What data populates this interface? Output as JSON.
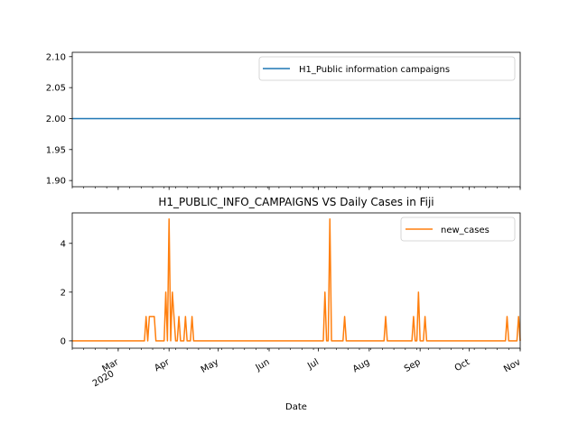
{
  "chart_data": [
    {
      "type": "line",
      "title": "",
      "xlabel": "",
      "ylabel": "",
      "ylim": [
        1.89,
        2.107
      ],
      "yticks": [
        "1.90",
        "1.95",
        "2.00",
        "2.05",
        "2.10"
      ],
      "ytick_values": [
        1.9,
        1.95,
        2.0,
        2.05,
        2.1
      ],
      "grid": false,
      "legend": "top-right",
      "series": [
        {
          "name": "H1_Public information campaigns",
          "color": "#1f77b4",
          "x": [
            "2020-02-02",
            "2020-11-01"
          ],
          "values": [
            2,
            2
          ]
        }
      ]
    },
    {
      "type": "line",
      "title": "H1_PUBLIC_INFO_CAMPAIGNS VS Daily Cases in Fiji",
      "xlabel": "Date",
      "ylabel": "",
      "ylim": [
        -0.3,
        5.25
      ],
      "yticks": [
        "0",
        "2",
        "4"
      ],
      "ytick_values": [
        0,
        2,
        4
      ],
      "grid": false,
      "legend": "top-right",
      "xlim": [
        "2020-02-02",
        "2020-11-01"
      ],
      "xticks": [
        {
          "date": "2020-03-01",
          "label": "Mar",
          "sublabel": "2020"
        },
        {
          "date": "2020-04-01",
          "label": "Apr",
          "sublabel": ""
        },
        {
          "date": "2020-05-01",
          "label": "May",
          "sublabel": ""
        },
        {
          "date": "2020-06-01",
          "label": "Jun",
          "sublabel": ""
        },
        {
          "date": "2020-07-01",
          "label": "Jul",
          "sublabel": ""
        },
        {
          "date": "2020-08-01",
          "label": "Aug",
          "sublabel": ""
        },
        {
          "date": "2020-09-01",
          "label": "Sep",
          "sublabel": ""
        },
        {
          "date": "2020-10-01",
          "label": "Oct",
          "sublabel": ""
        },
        {
          "date": "2020-11-01",
          "label": "Nov",
          "sublabel": ""
        }
      ],
      "series": [
        {
          "name": "new_cases",
          "color": "#ff7f0e",
          "points": [
            [
              "2020-02-02",
              0
            ],
            [
              "2020-03-17",
              0
            ],
            [
              "2020-03-18",
              1
            ],
            [
              "2020-03-19",
              0
            ],
            [
              "2020-03-20",
              1
            ],
            [
              "2020-03-23",
              1
            ],
            [
              "2020-03-24",
              0
            ],
            [
              "2020-03-29",
              0
            ],
            [
              "2020-03-30",
              2
            ],
            [
              "2020-03-31",
              0
            ],
            [
              "2020-04-01",
              5
            ],
            [
              "2020-04-02",
              0
            ],
            [
              "2020-04-03",
              2
            ],
            [
              "2020-04-04",
              1
            ],
            [
              "2020-04-05",
              0
            ],
            [
              "2020-04-06",
              0
            ],
            [
              "2020-04-07",
              1
            ],
            [
              "2020-04-08",
              0
            ],
            [
              "2020-04-10",
              0
            ],
            [
              "2020-04-11",
              1
            ],
            [
              "2020-04-12",
              0
            ],
            [
              "2020-04-14",
              0
            ],
            [
              "2020-04-15",
              1
            ],
            [
              "2020-04-16",
              0
            ],
            [
              "2020-07-04",
              0
            ],
            [
              "2020-07-05",
              2
            ],
            [
              "2020-07-06",
              0
            ],
            [
              "2020-07-07",
              0
            ],
            [
              "2020-07-08",
              5
            ],
            [
              "2020-07-09",
              0
            ],
            [
              "2020-07-16",
              0
            ],
            [
              "2020-07-17",
              1
            ],
            [
              "2020-07-18",
              0
            ],
            [
              "2020-08-10",
              0
            ],
            [
              "2020-08-11",
              1
            ],
            [
              "2020-08-12",
              0
            ],
            [
              "2020-08-27",
              0
            ],
            [
              "2020-08-28",
              1
            ],
            [
              "2020-08-29",
              0
            ],
            [
              "2020-08-30",
              0
            ],
            [
              "2020-08-31",
              2
            ],
            [
              "2020-09-01",
              0
            ],
            [
              "2020-09-03",
              0
            ],
            [
              "2020-09-04",
              1
            ],
            [
              "2020-09-05",
              0
            ],
            [
              "2020-10-23",
              0
            ],
            [
              "2020-10-24",
              1
            ],
            [
              "2020-10-25",
              0
            ],
            [
              "2020-10-30",
              0
            ],
            [
              "2020-10-31",
              1
            ],
            [
              "2020-11-01",
              0
            ]
          ]
        }
      ]
    }
  ]
}
